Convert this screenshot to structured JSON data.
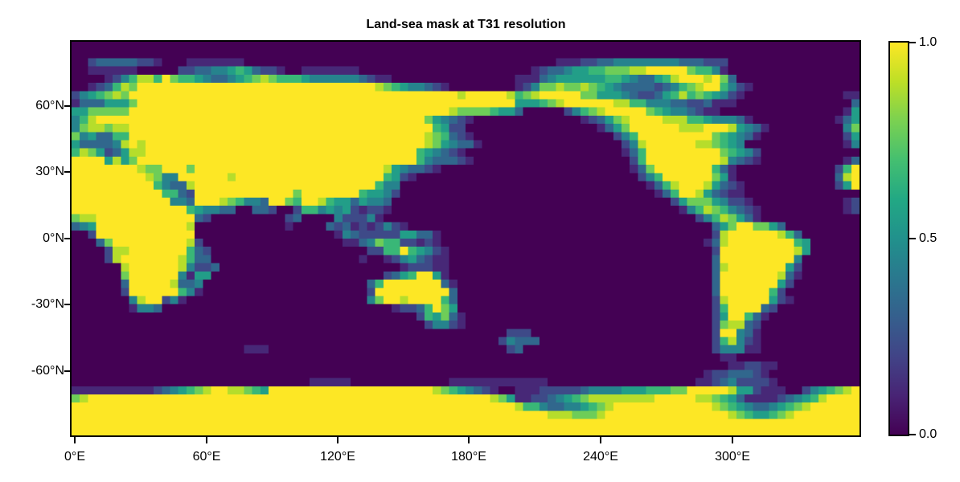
{
  "chart_data": {
    "type": "heatmap",
    "title": "Land-sea mask at T31 resolution",
    "xlabel": "",
    "ylabel": "",
    "x_ticks": [
      "0°E",
      "60°E",
      "120°E",
      "180°E",
      "240°E",
      "300°E"
    ],
    "x_tick_values": [
      0,
      60,
      120,
      180,
      240,
      300
    ],
    "y_ticks": [
      "60°N",
      "30°N",
      "0°N",
      "-30°N",
      "-60°N"
    ],
    "y_tick_values": [
      60,
      30,
      0,
      -30,
      -60
    ],
    "xlim": [
      0,
      356.25
    ],
    "ylim": [
      -87.16,
      87.16
    ],
    "grid": false,
    "colormap": "viridis",
    "colorbar": {
      "ticks": [
        "0.0",
        "0.5",
        "1.0"
      ],
      "tick_values": [
        0.0,
        0.5,
        1.0
      ],
      "range": [
        0.0,
        1.0
      ]
    },
    "grid_shape": {
      "nlon": 96,
      "nlat": 48
    },
    "value_encoding": "each char 0-9 maps to value digit/9; rows north to south, columns 0°E eastward in 3.75° steps",
    "mask_rows": [
      "000000000000000000000000000000000000000000000000000000000000000000000000000000000000000000000000",
      "000000000000000000000000000000000000000000000000000000000000000000000000000000000000000000000000",
      "002333332210001111111000000000000000000000000000000000000001112233444444443332220000000000000000",
      "001111110000022334456532210011111110000000000000000000001233455667778899999766410000000000000000",
      "000012468869766543345678766654444443211000000000000000111345555556654335689998973000000000000000",
      "001236879999999999999999999999999999987654432100000000124778778765433332346789964210000000000000",
      "245678799999999999999999999999999999999999999998999998678999997755543223568676542100000000000011",
      "133355579999999999999999999999999999999999999999999999555678999999886644433223111000000000000003",
      "557777799999999999999999999999999999999999999987777655300000246789999976544321100000000000000015",
      "468999999999999999999999999999999999999999975432100000000000001235789999888665444310000000000135",
      "478878899999999999999999999999999999999999996522000000000000000013579999998889998543100000000047",
      "745336699999999999999999999999999999999999987632100000000000000000246999999999765431000000000025",
      "533334898999999999999999999999999999999999987543310000000000000000024899999988765400000000000014",
      "687523588999999999999999999999999999999999654321000000000000000000013699999999976542000000000000",
      "999958579999999999999999999999999999999999643332100000000000000000002699999999984321000000000013",
      "999999998779997999999999999999999999998543321000000000000000000000001379999999631000000000000269",
      "999999999874499999989999999999999999996521000000000000000000000000000246999999751000000000000389",
      "999999999964338999999999999999999999964400000000000000000000000000000013689998532100000000000259",
      "999999999996632999999999999799999996554200000000000000000000000000000001369985321100000000000000",
      "999999999999443999876443997699865535443000000000000000000000000000000000025777542210000000000012",
      "999999999999996544330033200266454521221000000000000000000000000000000000001468764321000000000012",
      "788999999999999320000000002300004222410000000000000000000000000000000000000024687531000000000000",
      "345999999999998000000000001000032312124210000000000000000000000000000000000000357997753000000000",
      "002999999999999000000000000000001432222255331000000000000000000000000000000000289999998630000000",
      "000379999999998200000000000000000113476622121000000000000000000000000000000001389999999965000000",
      "000028899999996320000000000000000000226696542100000000000000000000000000000000299999999985000000",
      "000028999999986330000000000000000001001245321100000000000000000000000000000000399999999940000000",
      "000000899999984223000000000000000000000012221100000000000000000000000000000000389999999520000000",
      "000000799999941550000000000000000000002356995100000000000000000000000000000000399999998310000000",
      "000000399999833400000000000000000000369999999310000000000000000000000000000000399999995200000000",
      "000000299999964100000000000000000000299999999930000000000000000000000000000000399999962000000000",
      "000000048992410000000000000000000000479989999630000000000000000000000000000000289999952100000000",
      "000000014430000000000000000000000000000122369750000000000000000000000000000000269999320000000000",
      "000000000000000000000000000000000000000000265731000000000000000000000000000000259963100000000000",
      "000000000000000000000000000000000000000000024421000000000000000000000000000000278832000000000000",
      "000000000000000000000000000000000000000000000000000002220000000000000000000000299431000000000000",
      "000000000000000000000000000000000000000000000000000024333000000000000000000000268421000000000000",
      "000000000000000000000111000000000000000000000000000002300000000000000000000000244411000000000000",
      "000000000000000000000000000000000000000000000000000000000000000000000000000000011000000000000000",
      "000000000000000000000000000000000000000000000000000000000000000000000000000000001122110000000000",
      "000000000000000000000000000000000000000000000000000000000000000000000000000001223332100000000000",
      "000000000000000000000000000001111100000000000011111111111100000000000000000011234222210000000000",
      "111111111123456789988765999999999999999999998765432100111222223444455566677999998552111002456789",
      "789999999999999999999999999999999999999999999999999875112234567888888889999988765311112345689999",
      "999999999999999999999999999999999999999999999999999999866433445678999999999999876543345678999999",
      "999999999999999999999999999999999999999999999999999999999988877789999999999999998765567899999999",
      "999999999999999999999999999999999999999999999999999999999999999999999999999999999999999999999999",
      "999999999999999999999999999999999999999999999999999999999999999999999999999999999999999999999999"
    ]
  },
  "title": "Land-sea mask at T31 resolution"
}
